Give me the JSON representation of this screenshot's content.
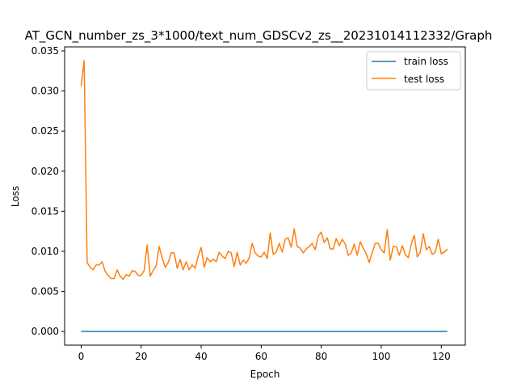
{
  "chart_data": {
    "type": "line",
    "title": "AT_GCN_number_zs_3*1000/text_num_GDSCv2_zs__20231014112332/Graph",
    "xlabel": "Epoch",
    "ylabel": "Loss",
    "xlim": [
      -5.5,
      128
    ],
    "ylim": [
      -0.0017,
      0.0355
    ],
    "xticks": [
      0,
      20,
      40,
      60,
      80,
      100,
      120
    ],
    "yticks": [
      0.0,
      0.005,
      0.01,
      0.015,
      0.02,
      0.025,
      0.03,
      0.035
    ],
    "ytick_labels": [
      "0.000",
      "0.005",
      "0.010",
      "0.015",
      "0.020",
      "0.025",
      "0.030",
      "0.035"
    ],
    "grid": false,
    "legend_position": "top-right",
    "series": [
      {
        "name": "train loss",
        "color": "#1f77b4",
        "x_start": 0,
        "values": [
          1e-05,
          1e-05,
          1e-05,
          1e-05,
          1e-05,
          1e-05,
          1e-05,
          1e-05,
          1e-05,
          1e-05,
          1e-05,
          1e-05,
          1e-05,
          1e-05,
          1e-05,
          1e-05,
          1e-05,
          1e-05,
          1e-05,
          1e-05,
          1e-05,
          1e-05,
          1e-05,
          1e-05,
          1e-05,
          1e-05,
          1e-05,
          1e-05,
          1e-05,
          1e-05,
          1e-05,
          1e-05,
          1e-05,
          1e-05,
          1e-05,
          1e-05,
          1e-05,
          1e-05,
          1e-05,
          1e-05,
          1e-05,
          1e-05,
          1e-05,
          1e-05,
          1e-05,
          1e-05,
          1e-05,
          1e-05,
          1e-05,
          1e-05,
          1e-05,
          1e-05,
          1e-05,
          1e-05,
          1e-05,
          1e-05,
          1e-05,
          1e-05,
          1e-05,
          1e-05,
          1e-05,
          1e-05,
          1e-05,
          1e-05,
          1e-05,
          1e-05,
          1e-05,
          1e-05,
          1e-05,
          1e-05,
          1e-05,
          1e-05,
          1e-05,
          1e-05,
          1e-05,
          1e-05,
          1e-05,
          1e-05,
          1e-05,
          1e-05,
          1e-05,
          1e-05,
          1e-05,
          1e-05,
          1e-05,
          1e-05,
          1e-05,
          1e-05,
          1e-05,
          1e-05,
          1e-05,
          1e-05,
          1e-05,
          1e-05,
          1e-05,
          1e-05,
          1e-05,
          1e-05,
          1e-05,
          1e-05,
          1e-05,
          1e-05,
          1e-05,
          1e-05,
          1e-05,
          1e-05,
          1e-05,
          1e-05,
          1e-05,
          1e-05,
          1e-05,
          1e-05,
          1e-05,
          1e-05,
          1e-05,
          1e-05,
          1e-05,
          1e-05,
          1e-05,
          1e-05,
          1e-05,
          1e-05,
          1e-05
        ]
      },
      {
        "name": "test loss",
        "color": "#ff7f0e",
        "x_start": 0,
        "values": [
          0.0306,
          0.0338,
          0.0086,
          0.008,
          0.0077,
          0.0083,
          0.0083,
          0.0087,
          0.0075,
          0.007,
          0.0066,
          0.0066,
          0.0077,
          0.0069,
          0.0065,
          0.0071,
          0.0069,
          0.0076,
          0.0075,
          0.007,
          0.007,
          0.0076,
          0.0108,
          0.0069,
          0.0076,
          0.0082,
          0.0106,
          0.0092,
          0.008,
          0.0086,
          0.0098,
          0.0098,
          0.0079,
          0.009,
          0.0077,
          0.0087,
          0.0077,
          0.0083,
          0.0079,
          0.0094,
          0.0105,
          0.008,
          0.0092,
          0.0087,
          0.009,
          0.0087,
          0.0099,
          0.0094,
          0.0091,
          0.01,
          0.0098,
          0.0081,
          0.0099,
          0.0083,
          0.0089,
          0.0085,
          0.0092,
          0.011,
          0.0098,
          0.0094,
          0.0093,
          0.0099,
          0.0091,
          0.0123,
          0.0096,
          0.0099,
          0.011,
          0.0099,
          0.0115,
          0.0117,
          0.0105,
          0.0128,
          0.0106,
          0.0104,
          0.0098,
          0.0103,
          0.0106,
          0.011,
          0.0102,
          0.0119,
          0.0124,
          0.0111,
          0.0117,
          0.0103,
          0.0103,
          0.0116,
          0.0107,
          0.0115,
          0.0109,
          0.0095,
          0.0098,
          0.0109,
          0.0095,
          0.0112,
          0.0104,
          0.0097,
          0.0086,
          0.0099,
          0.011,
          0.011,
          0.0102,
          0.0098,
          0.0127,
          0.0089,
          0.0106,
          0.0106,
          0.0095,
          0.0107,
          0.0096,
          0.0092,
          0.0109,
          0.012,
          0.0093,
          0.0099,
          0.0122,
          0.0102,
          0.0106,
          0.0096,
          0.0099,
          0.0115,
          0.0097,
          0.0099,
          0.0103
        ]
      }
    ]
  }
}
